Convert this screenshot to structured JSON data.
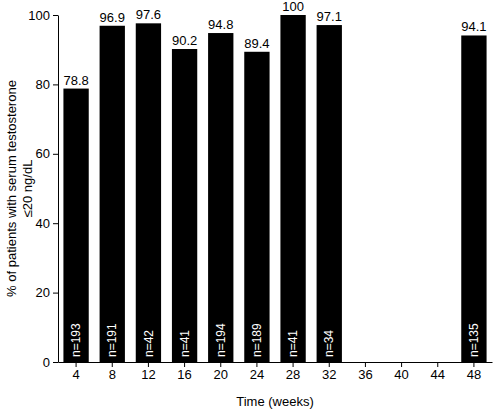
{
  "chart_data": {
    "type": "bar",
    "categories": [
      "4",
      "8",
      "12",
      "16",
      "20",
      "24",
      "28",
      "32",
      "36",
      "40",
      "44",
      "48"
    ],
    "values": [
      78.8,
      96.9,
      97.6,
      90.2,
      94.8,
      89.4,
      100,
      97.1,
      null,
      null,
      null,
      94.1
    ],
    "n_labels": [
      "n=193",
      "n=191",
      "n=42",
      "n=41",
      "n=194",
      "n=189",
      "n=41",
      "n=34",
      null,
      null,
      null,
      "n=135"
    ],
    "color": "#000000",
    "x_label": "Time (weeks)",
    "y_label": [
      "% of patients with serum testosterone",
      "≤20 ng/dL"
    ],
    "ylim": [
      0,
      100
    ],
    "yticks": [
      0,
      20,
      40,
      60,
      80,
      100
    ],
    "grid": false,
    "data_labels": true
  }
}
